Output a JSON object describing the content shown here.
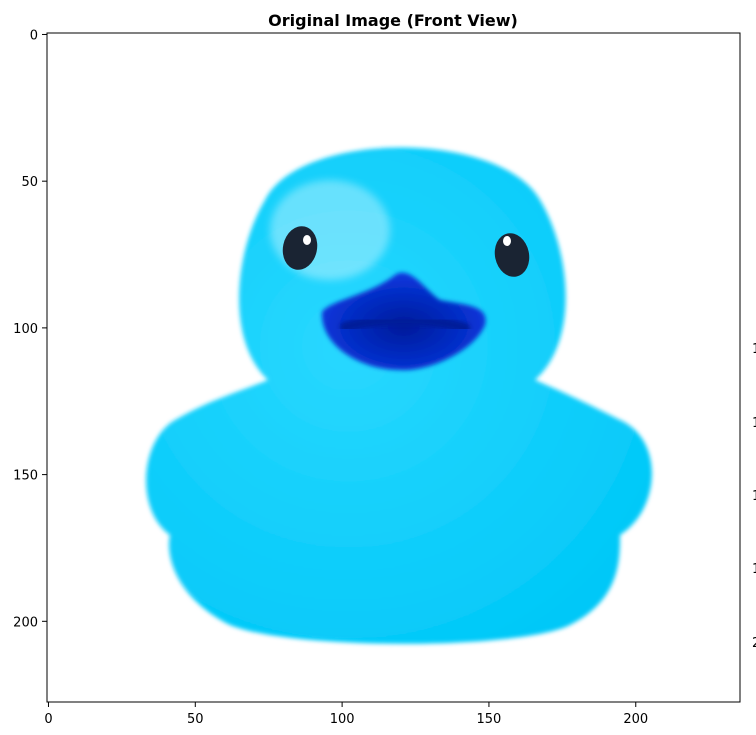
{
  "chart_data": {
    "type": "image",
    "title": "Original Image (Front View)",
    "xlim": [
      -0.5,
      235.5
    ],
    "ylim": [
      227.5,
      -0.5
    ],
    "xticks": [
      0,
      50,
      100,
      150,
      200
    ],
    "yticks": [
      0,
      50,
      100,
      150,
      200
    ],
    "xlabel": "",
    "ylabel": "",
    "image_content": "rubber-duck-front-view",
    "colors": {
      "background": "#ffffff",
      "duck_body": "#00c8f8",
      "duck_highlight": "#2ad8ff",
      "beak": "#0a3be6",
      "beak_dark": "#001a9a",
      "eye": "#1a2433",
      "eye_shine": "#ffffff"
    },
    "right_edge_tick_glyphs": [
      "1",
      "1",
      "1",
      "1",
      "2"
    ]
  }
}
